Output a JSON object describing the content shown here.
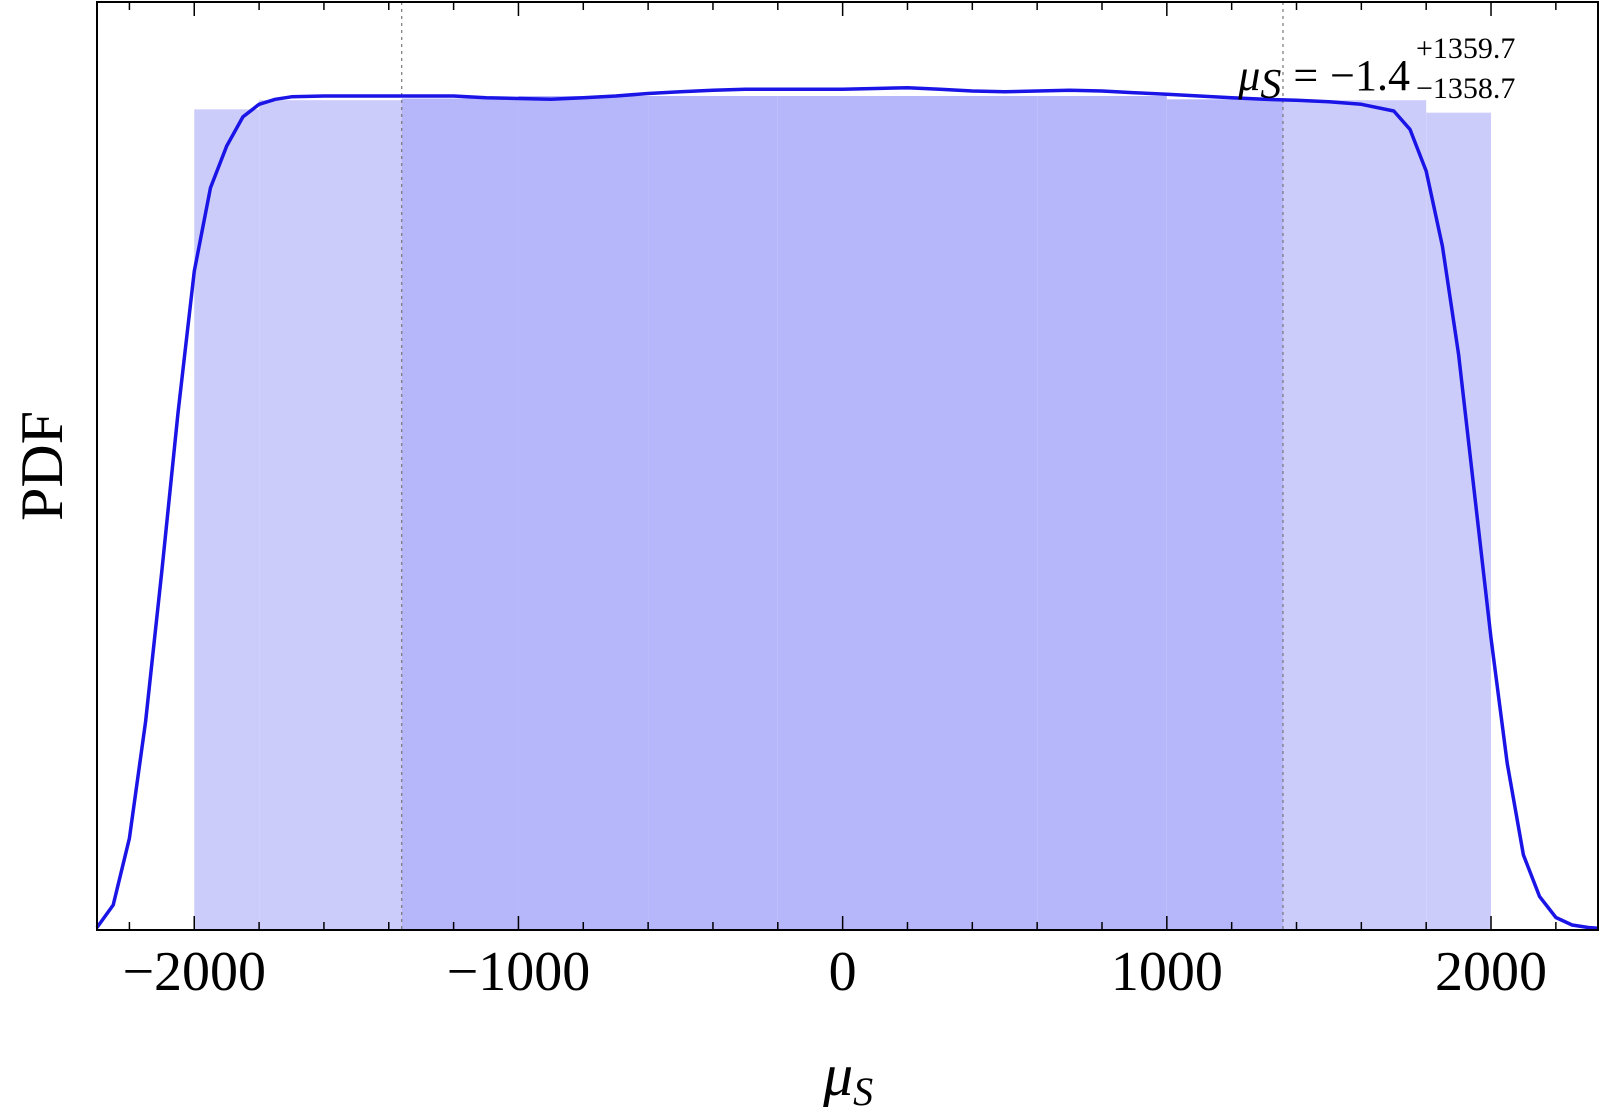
{
  "chart_data": {
    "type": "area",
    "xlabel": "μ",
    "xlabel_sub": "S",
    "ylabel": "PDF",
    "xlim": [
      -2300,
      2330
    ],
    "ylim": [
      0,
      1
    ],
    "x_ticks_major": [
      -2000,
      -1000,
      0,
      1000,
      2000
    ],
    "x_tick_labels": [
      "−2000",
      "−1000",
      "0",
      "1000",
      "2000"
    ],
    "x_ticks_minor_step": 200,
    "y_ticks_shown": false,
    "annotation": {
      "symbol": "μ",
      "symbol_sub": "S",
      "equals": "=",
      "central": "−1.4",
      "upper": "+1359.7",
      "lower": "−1358.7"
    },
    "interval": {
      "lower": -1360.1,
      "upper": 1358.3
    },
    "histogram": {
      "bins": [
        {
          "x0": -2000,
          "x1": -1800,
          "y": 0.984
        },
        {
          "x0": -1800,
          "x1": -1360.1,
          "y": 0.995
        },
        {
          "x0": -1360.1,
          "x1": -1000,
          "y": 0.997
        },
        {
          "x0": -1000,
          "x1": -600,
          "y": 1.0
        },
        {
          "x0": -600,
          "x1": -200,
          "y": 1.0
        },
        {
          "x0": -200,
          "x1": 200,
          "y": 1.0
        },
        {
          "x0": 200,
          "x1": 600,
          "y": 1.0
        },
        {
          "x0": 600,
          "x1": 1000,
          "y": 1.0
        },
        {
          "x0": 1000,
          "x1": 1358.3,
          "y": 0.996
        },
        {
          "x0": 1358.3,
          "x1": 1800,
          "y": 0.995
        },
        {
          "x0": 1800,
          "x1": 2000,
          "y": 0.98
        }
      ]
    },
    "series": [
      {
        "type": "line",
        "x": [
          -2300,
          -2250,
          -2200,
          -2150,
          -2100,
          -2050,
          -2000,
          -1950,
          -1900,
          -1850,
          -1800,
          -1750,
          -1700,
          -1600,
          -1500,
          -1400,
          -1300,
          -1200,
          -1100,
          -1000,
          -900,
          -800,
          -700,
          -600,
          -500,
          -400,
          -300,
          -200,
          -100,
          0,
          100,
          200,
          300,
          400,
          500,
          600,
          700,
          800,
          900,
          1000,
          1100,
          1200,
          1300,
          1400,
          1500,
          1600,
          1700,
          1750,
          1800,
          1850,
          1900,
          1950,
          2000,
          2050,
          2100,
          2150,
          2200,
          2250,
          2300,
          2330
        ],
        "y": [
          0.003,
          0.03,
          0.11,
          0.25,
          0.43,
          0.62,
          0.79,
          0.89,
          0.94,
          0.975,
          0.99,
          0.996,
          0.999,
          1.0,
          1.0,
          1.0,
          1.0,
          1.0,
          0.998,
          0.997,
          0.996,
          0.998,
          1.0,
          1.003,
          1.005,
          1.007,
          1.008,
          1.008,
          1.008,
          1.008,
          1.009,
          1.01,
          1.008,
          1.006,
          1.005,
          1.006,
          1.007,
          1.006,
          1.004,
          1.002,
          1.0,
          0.998,
          0.996,
          0.995,
          0.993,
          0.99,
          0.982,
          0.96,
          0.91,
          0.82,
          0.69,
          0.52,
          0.35,
          0.2,
          0.09,
          0.04,
          0.015,
          0.006,
          0.003,
          0.002
        ]
      }
    ],
    "colors": {
      "curve": "#1a14e6",
      "bins_outer": "#ccccfb",
      "bins_inner": "#b6b6fa",
      "guide": "#777777",
      "axis": "#000000"
    }
  }
}
